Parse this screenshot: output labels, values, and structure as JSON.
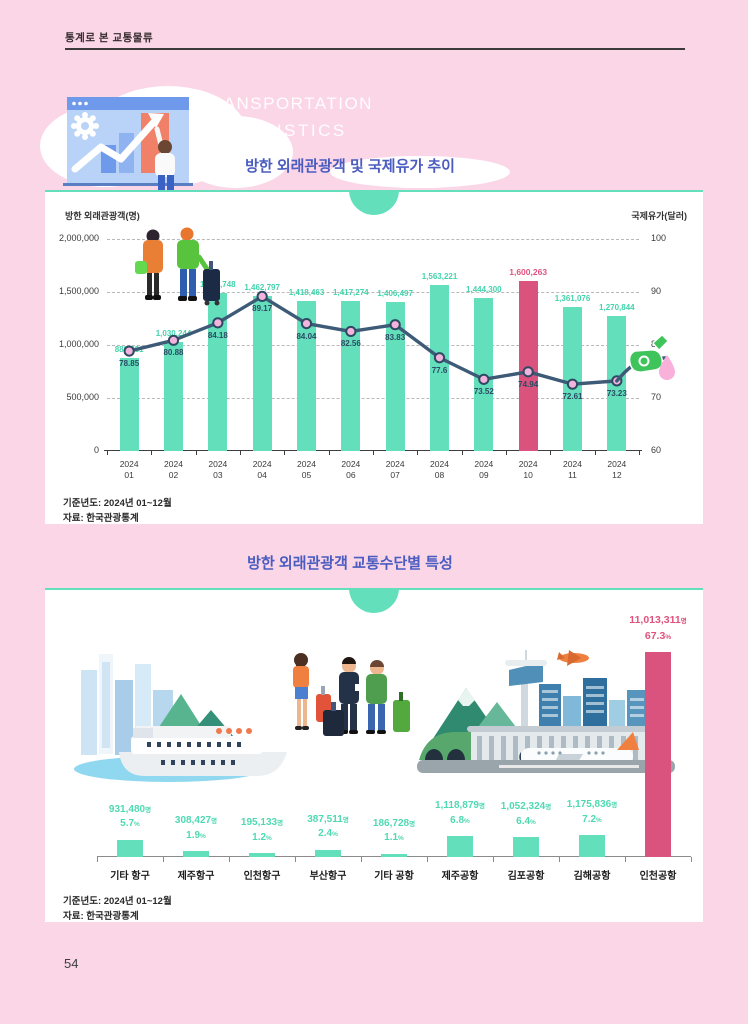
{
  "page": {
    "doc_header": "통계로 본 교통물류",
    "page_number": "54",
    "brand": {
      "line1": "TRANSPORTATION",
      "line2": "STATISTICS"
    }
  },
  "colors": {
    "background_pink": "#fad6e7",
    "mint": "#63dfbc",
    "mint_text": "#4fd9b2",
    "rose": "#d9537e",
    "rose_text": "#e0537f",
    "line_navy": "#3d5a76",
    "marker_pink": "#f2b3dc",
    "title_blue": "#4a5cc0"
  },
  "chart1": {
    "title": "방한 외래관광객 및 국제유가 추이",
    "left_axis_title": "방한 외래관광객(명)",
    "right_axis_title": "국제유가(달러)",
    "left_ticks": [
      "2,000,000",
      "1,500,000",
      "1,000,000",
      "500,000",
      "0"
    ],
    "right_ticks": [
      "100",
      "90",
      "80",
      "70",
      "60"
    ],
    "footnote_basis": "기준년도: 2024년 01~12월",
    "footnote_source": "자료: 한국관광통계"
  },
  "chart2": {
    "title": "방한 외래관광객 교통수단별 특성",
    "footnote_basis": "기준년도: 2024년 01~12월",
    "footnote_source": "자료: 한국관광통계"
  },
  "chart_data": [
    {
      "type": "bar",
      "combo": "bar+line",
      "title": "방한 외래관광객 및 국제유가 추이",
      "categories": [
        "2024 01",
        "2024 02",
        "2024 03",
        "2024 04",
        "2024 05",
        "2024 06",
        "2024 07",
        "2024 08",
        "2024 09",
        "2024 10",
        "2024 11",
        "2024 12"
      ],
      "series": [
        {
          "name": "방한 외래관광객(명)",
          "type": "bar",
          "axis": "left",
          "values": [
            880881,
            1030244,
            1491748,
            1462797,
            1418463,
            1417274,
            1406497,
            1563221,
            1444300,
            1600263,
            1361076,
            1270844
          ],
          "labels": [
            "880,881",
            "1,030,244",
            "1,491,748",
            "1,462,797",
            "1,418,463",
            "1,417,274",
            "1,406,497",
            "1,563,221",
            "1,444,300",
            "1,600,263",
            "1,361,076",
            "1,270,844"
          ],
          "highlight_index": 9
        },
        {
          "name": "국제유가(달러)",
          "type": "line",
          "axis": "right",
          "values": [
            78.85,
            80.88,
            84.18,
            89.17,
            84.04,
            82.56,
            83.83,
            77.6,
            73.52,
            74.94,
            72.61,
            73.23
          ],
          "labels": [
            "78.85",
            "80.88",
            "84.18",
            "89.17",
            "84.04",
            "82.56",
            "83.83",
            "77.6",
            "73.52",
            "74.94",
            "72.61",
            "73.23"
          ]
        }
      ],
      "left_axis": {
        "title": "방한 외래관광객(명)",
        "range": [
          0,
          2000000
        ]
      },
      "right_axis": {
        "title": "국제유가(달러)",
        "range": [
          60,
          100
        ]
      },
      "grid": true,
      "legend": "none"
    },
    {
      "type": "bar",
      "title": "방한 외래관광객 교통수단별 특성",
      "categories": [
        "기타 항구",
        "제주항구",
        "인천항구",
        "부산항구",
        "기타 공항",
        "제주공항",
        "김포공항",
        "김해공항",
        "인천공항"
      ],
      "values": [
        931480,
        308427,
        195133,
        387511,
        186728,
        1118879,
        1052324,
        1175836,
        11013311
      ],
      "value_labels": [
        "931,480",
        "308,427",
        "195,133",
        "387,511",
        "186,728",
        "1,118,879",
        "1,052,324",
        "1,175,836",
        "11,013,311"
      ],
      "percent_labels": [
        "5.7",
        "1.9",
        "1.2",
        "2.4",
        "1.1",
        "6.8",
        "6.4",
        "7.2",
        "67.3"
      ],
      "value_suffix": "명",
      "percent_suffix": "%",
      "highlight_index": 8,
      "xlabel": "",
      "ylabel": ""
    }
  ]
}
